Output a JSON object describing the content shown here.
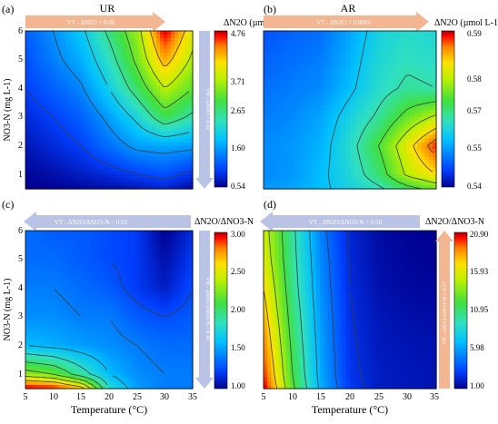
{
  "colors": {
    "arrow_orange": "#f2b692",
    "arrow_blue": "#b9c3e6",
    "contour_line": "#3a3a3a",
    "colormap": [
      "#00008f",
      "#0040ff",
      "#00c0ff",
      "#30e0c0",
      "#40e040",
      "#c0f000",
      "#ffe000",
      "#ff8000",
      "#ff0000",
      "#a00000"
    ]
  },
  "chart_data": [
    {
      "panel": "(a)",
      "type": "heatmap",
      "title": "UR",
      "xlabel": "",
      "ylabel": "NO3-N (mg L-1)",
      "x_ticks": [
        "5",
        "10",
        "15",
        "20",
        "25",
        "30",
        "35"
      ],
      "y_ticks": [
        "1",
        "2",
        "3",
        "4",
        "5",
        "6"
      ],
      "xlim": [
        5,
        35
      ],
      "ylim": [
        0.5,
        6
      ],
      "colorbar": {
        "title": "ΔN2O (µmol L-1)",
        "ticks": [
          "4.76",
          "3.71",
          "2.65",
          "1.60",
          "0.54"
        ],
        "min": 0.54,
        "max": 4.76
      },
      "horizontal_arrow": {
        "text": "VT - ΔN2O = 0.06",
        "direction": "right",
        "color": "orange"
      },
      "vertical_arrow": {
        "text": "VN - ΔN2O = 0.32",
        "direction": "down",
        "color": "blue"
      },
      "x": [
        5,
        10,
        15,
        20,
        25,
        30,
        35
      ],
      "y": [
        0.5,
        1,
        2,
        3,
        4,
        5,
        6
      ],
      "z": [
        [
          0.54,
          0.56,
          0.6,
          0.65,
          0.7,
          0.8,
          0.6
        ],
        [
          0.58,
          0.65,
          0.75,
          0.85,
          1.0,
          1.1,
          0.9
        ],
        [
          0.7,
          0.85,
          1.0,
          1.3,
          1.6,
          1.65,
          1.6
        ],
        [
          0.85,
          1.0,
          1.2,
          1.6,
          2.1,
          2.8,
          2.4
        ],
        [
          1.0,
          1.2,
          1.45,
          2.0,
          2.7,
          3.5,
          3.0
        ],
        [
          1.1,
          1.4,
          1.7,
          2.3,
          3.1,
          4.2,
          3.4
        ],
        [
          1.2,
          1.5,
          1.9,
          2.6,
          3.3,
          4.76,
          3.7
        ]
      ],
      "contour_levels": [
        1.0,
        1.5,
        2.0,
        2.5,
        3.0,
        3.5,
        4.0
      ]
    },
    {
      "panel": "(b)",
      "type": "heatmap",
      "title": "AR",
      "xlabel": "",
      "ylabel": "",
      "x_ticks": [],
      "y_ticks": [],
      "xlim": [
        5,
        35
      ],
      "ylim": [
        0.5,
        6
      ],
      "colorbar": {
        "title": "ΔN2O (µmol L-1)",
        "ticks": [
          "0.59",
          "0.58",
          "0.57",
          "0.55",
          "0.54"
        ],
        "min": 0.54,
        "max": 0.59
      },
      "horizontal_arrow": {
        "text": "VT - ΔN2O = 0.0005",
        "direction": "right",
        "color": "orange"
      },
      "vertical_arrow": null,
      "x": [
        5,
        10,
        15,
        20,
        25,
        30,
        35
      ],
      "y": [
        0.5,
        1,
        2,
        3,
        4,
        5,
        6
      ],
      "z": [
        [
          0.552,
          0.553,
          0.555,
          0.558,
          0.561,
          0.566,
          0.57
        ],
        [
          0.551,
          0.552,
          0.555,
          0.559,
          0.565,
          0.575,
          0.58
        ],
        [
          0.551,
          0.552,
          0.554,
          0.56,
          0.568,
          0.578,
          0.588
        ],
        [
          0.55,
          0.551,
          0.553,
          0.558,
          0.563,
          0.57,
          0.575
        ],
        [
          0.549,
          0.55,
          0.551,
          0.555,
          0.56,
          0.563,
          0.562
        ],
        [
          0.548,
          0.549,
          0.55,
          0.554,
          0.559,
          0.561,
          0.56
        ],
        [
          0.547,
          0.548,
          0.549,
          0.553,
          0.558,
          0.56,
          0.559
        ]
      ],
      "contour_levels": [
        0.556,
        0.562,
        0.568,
        0.574,
        0.58,
        0.585
      ]
    },
    {
      "panel": "(c)",
      "type": "heatmap",
      "title": "",
      "xlabel": "Temperature (°C)",
      "ylabel": "NO3-N (mg L-1)",
      "x_ticks": [
        "5",
        "10",
        "15",
        "20",
        "25",
        "30",
        "35"
      ],
      "y_ticks": [
        "1",
        "2",
        "3",
        "4",
        "5",
        "6"
      ],
      "xlim": [
        5,
        35
      ],
      "ylim": [
        0.5,
        6
      ],
      "colorbar": {
        "title": "ΔN2O/ΔNO3-N",
        "ticks": [
          "3.00",
          "2.50",
          "2.00",
          "1.50",
          "1.00"
        ],
        "min": 1.0,
        "max": 3.0
      },
      "horizontal_arrow": {
        "text": "VT - ΔN2O/ΔNO3-N = 0.02",
        "direction": "left",
        "color": "blue"
      },
      "vertical_arrow": {
        "text": "VN - ΔN2O/ΔNO3-N = 0.10",
        "direction": "down",
        "color": "blue"
      },
      "x": [
        5,
        10,
        15,
        20,
        25,
        30,
        35
      ],
      "y": [
        0.5,
        1,
        2,
        3,
        4,
        5,
        6
      ],
      "z": [
        [
          3.0,
          2.95,
          2.7,
          1.8,
          1.5,
          1.4,
          1.4
        ],
        [
          2.3,
          2.2,
          1.9,
          1.6,
          1.45,
          1.4,
          1.4
        ],
        [
          1.6,
          1.55,
          1.5,
          1.45,
          1.4,
          1.35,
          1.35
        ],
        [
          1.45,
          1.45,
          1.4,
          1.4,
          1.3,
          1.25,
          1.3
        ],
        [
          1.4,
          1.4,
          1.35,
          1.3,
          1.2,
          1.1,
          1.25
        ],
        [
          1.35,
          1.35,
          1.3,
          1.25,
          1.2,
          1.05,
          1.2
        ],
        [
          1.35,
          1.3,
          1.3,
          1.25,
          1.2,
          1.0,
          1.15
        ]
      ],
      "contour_levels": [
        1.25,
        1.4,
        1.6,
        1.8,
        2.0,
        2.2,
        2.4,
        2.6
      ]
    },
    {
      "panel": "(d)",
      "type": "heatmap",
      "title": "",
      "xlabel": "Temperature (°C)",
      "ylabel": "",
      "x_ticks": [
        "5",
        "10",
        "15",
        "20",
        "25",
        "30",
        "35"
      ],
      "y_ticks": [],
      "xlim": [
        5,
        35
      ],
      "ylim": [
        0.5,
        6
      ],
      "colorbar": {
        "title": "ΔN2O/ΔNO3-N",
        "ticks": [
          "20.90",
          "15.93",
          "10.95",
          "5.98",
          "1.00"
        ],
        "min": 1.0,
        "max": 20.9
      },
      "horizontal_arrow": {
        "text": "VT - ΔN2O/ΔNO3-N = 0.50",
        "direction": "left",
        "color": "blue"
      },
      "vertical_arrow": {
        "text": "VN - ΔN2O/ΔNO3-N = 0.27",
        "direction": "up",
        "color": "orange"
      },
      "x": [
        5,
        10,
        15,
        20,
        25,
        30,
        35
      ],
      "y": [
        0.5,
        1,
        2,
        3,
        4,
        5,
        6
      ],
      "z": [
        [
          20.9,
          12.5,
          6.5,
          3.0,
          2.0,
          1.8,
          1.7
        ],
        [
          20.0,
          12.0,
          6.2,
          2.8,
          2.0,
          1.8,
          1.7
        ],
        [
          19.0,
          11.5,
          6.0,
          2.7,
          1.9,
          1.7,
          1.6
        ],
        [
          18.0,
          11.0,
          5.8,
          2.6,
          1.8,
          1.5,
          1.4
        ],
        [
          17.0,
          10.5,
          5.5,
          2.5,
          1.6,
          1.3,
          1.2
        ],
        [
          16.0,
          10.2,
          5.3,
          2.4,
          1.5,
          1.2,
          1.1
        ],
        [
          15.5,
          10.0,
          5.0,
          2.3,
          1.4,
          1.1,
          1.0
        ]
      ],
      "contour_levels": [
        2.5,
        4.5,
        7,
        9.5,
        12,
        14.5,
        17
      ]
    }
  ]
}
